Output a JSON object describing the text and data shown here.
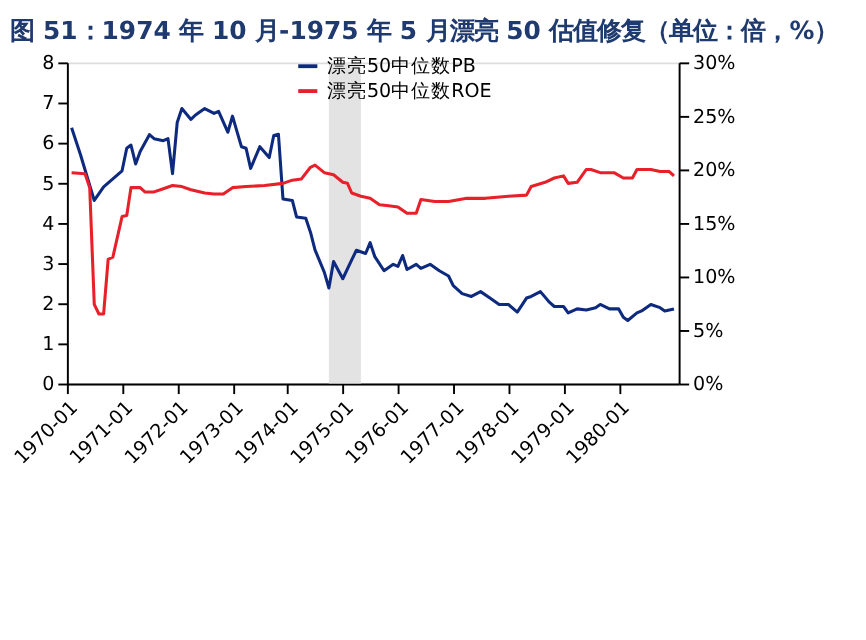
{
  "chart_data": {
    "type": "line",
    "title": "图 51：1974 年 10 月-1975 年 5 月漂亮 50 估值修复（单位：倍，%）",
    "xlim": [
      "1970-01",
      "1981-02"
    ],
    "xticks": [
      "1970-01",
      "1971-01",
      "1972-01",
      "1973-01",
      "1974-01",
      "1975-01",
      "1976-01",
      "1977-01",
      "1978-01",
      "1979-01",
      "1980-01"
    ],
    "ylim": [
      0,
      8
    ],
    "yticks": [
      0,
      1,
      2,
      3,
      4,
      5,
      6,
      7,
      8
    ],
    "y2lim": [
      0,
      30
    ],
    "y2ticks": [
      {
        "value": 0,
        "label": "0%"
      },
      {
        "value": 5,
        "label": "5%"
      },
      {
        "value": 10,
        "label": "10%"
      },
      {
        "value": 15,
        "label": "15%"
      },
      {
        "value": 20,
        "label": "20%"
      },
      {
        "value": 25,
        "label": "25%"
      },
      {
        "value": 30,
        "label": "30%"
      }
    ],
    "grid": false,
    "legend": "top",
    "marker": "none",
    "line_style": "solid",
    "bands": [
      {
        "axis": "x",
        "from": "1974-10",
        "to": "1975-05",
        "color": "#e3e3e3"
      }
    ],
    "series": [
      {
        "name": "漂亮50中位数PB",
        "color": "#0d2a7f",
        "x": [
          "1970-02",
          "1970-04",
          "1970-07",
          "1970-09",
          "1970-11",
          "1971-01",
          "1971-02",
          "1971-03",
          "1971-04",
          "1971-05",
          "1971-07",
          "1971-08",
          "1971-10",
          "1971-11",
          "1971-12",
          "1972-01",
          "1972-02",
          "1972-04",
          "1972-05",
          "1972-07",
          "1972-09",
          "1972-10",
          "1972-12",
          "1973-01",
          "1973-03",
          "1973-04",
          "1973-05",
          "1973-07",
          "1973-09",
          "1973-10",
          "1973-11",
          "1973-12",
          "1974-02",
          "1974-03",
          "1974-05",
          "1974-06",
          "1974-07",
          "1974-09",
          "1974-10",
          "1974-11",
          "1975-01",
          "1975-03",
          "1975-04",
          "1975-06",
          "1975-07",
          "1975-08",
          "1975-10",
          "1975-12",
          "1976-01",
          "1976-02",
          "1976-03",
          "1976-05",
          "1976-06",
          "1976-08",
          "1976-10",
          "1976-12",
          "1977-01",
          "1977-03",
          "1977-05",
          "1977-07",
          "1977-09",
          "1977-11",
          "1978-01",
          "1978-03",
          "1978-05",
          "1978-06",
          "1978-08",
          "1978-10",
          "1978-11",
          "1979-01",
          "1979-02",
          "1979-04",
          "1979-06",
          "1979-08",
          "1979-09",
          "1979-11",
          "1980-01",
          "1980-02",
          "1980-03",
          "1980-05",
          "1980-06",
          "1980-08",
          "1980-10",
          "1980-11",
          "1981-01"
        ],
        "values": [
          6.37,
          5.7,
          4.56,
          4.9,
          5.1,
          5.3,
          5.86,
          5.94,
          5.47,
          5.78,
          6.2,
          6.1,
          6.05,
          6.1,
          5.23,
          6.5,
          6.85,
          6.58,
          6.69,
          6.85,
          6.73,
          6.78,
          6.26,
          6.66,
          5.9,
          5.86,
          5.36,
          5.9,
          5.63,
          6.18,
          6.21,
          4.6,
          4.56,
          4.15,
          4.12,
          3.77,
          3.33,
          2.77,
          2.38,
          3.04,
          2.61,
          3.08,
          3.32,
          3.24,
          3.51,
          3.16,
          2.81,
          2.97,
          2.92,
          3.19,
          2.84,
          2.97,
          2.87,
          2.97,
          2.81,
          2.68,
          2.44,
          2.24,
          2.17,
          2.29,
          2.13,
          1.97,
          1.97,
          1.78,
          2.13,
          2.17,
          2.29,
          2.02,
          1.92,
          1.92,
          1.76,
          1.86,
          1.83,
          1.89,
          1.97,
          1.86,
          1.86,
          1.65,
          1.57,
          1.76,
          1.81,
          1.97,
          1.89,
          1.81,
          1.86
        ]
      },
      {
        "name": "漂亮50中位数ROE",
        "color": "#e8202a",
        "axis": "y2",
        "x": [
          "1970-02",
          "1970-05",
          "1970-06",
          "1970-07",
          "1970-08",
          "1970-09",
          "1970-10",
          "1970-11",
          "1971-01",
          "1971-02",
          "1971-03",
          "1971-05",
          "1971-06",
          "1971-08",
          "1971-10",
          "1971-12",
          "1972-02",
          "1972-04",
          "1972-07",
          "1972-09",
          "1972-11",
          "1973-01",
          "1973-04",
          "1973-08",
          "1973-12",
          "1974-02",
          "1974-04",
          "1974-06",
          "1974-07",
          "1974-09",
          "1974-11",
          "1975-01",
          "1975-02",
          "1975-03",
          "1975-05",
          "1975-07",
          "1975-09",
          "1975-11",
          "1976-01",
          "1976-03",
          "1976-05",
          "1976-06",
          "1976-09",
          "1976-12",
          "1977-04",
          "1977-08",
          "1978-01",
          "1978-05",
          "1978-06",
          "1978-09",
          "1978-11",
          "1979-01",
          "1979-02",
          "1979-04",
          "1979-06",
          "1979-07",
          "1979-09",
          "1979-12",
          "1980-02",
          "1980-04",
          "1980-05",
          "1980-08",
          "1980-10",
          "1980-12",
          "1981-01"
        ],
        "values": [
          19.7,
          19.6,
          18.3,
          7.4,
          6.5,
          6.5,
          11.6,
          11.8,
          15.6,
          15.7,
          18.3,
          18.3,
          17.9,
          17.9,
          18.2,
          18.5,
          18.4,
          18.1,
          17.8,
          17.7,
          17.7,
          18.3,
          18.4,
          18.5,
          18.7,
          19.0,
          19.1,
          20.2,
          20.4,
          19.7,
          19.5,
          18.8,
          18.7,
          17.8,
          17.5,
          17.3,
          16.7,
          16.6,
          16.5,
          15.9,
          15.9,
          17.2,
          17.0,
          17.0,
          17.3,
          17.3,
          17.5,
          17.6,
          18.4,
          18.8,
          19.2,
          19.4,
          18.7,
          18.8,
          20.0,
          20.0,
          19.7,
          19.7,
          19.2,
          19.2,
          20.0,
          20.0,
          19.8,
          19.8,
          19.4
        ]
      }
    ]
  }
}
